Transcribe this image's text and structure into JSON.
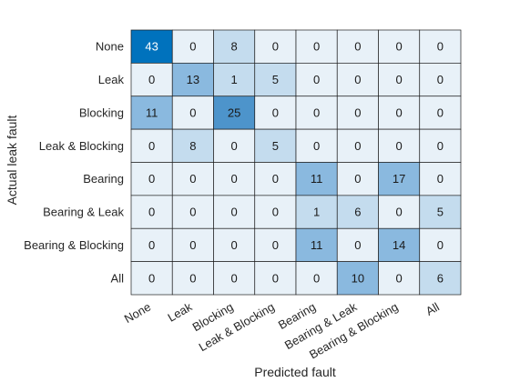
{
  "chart_data": {
    "type": "heatmap",
    "title": "",
    "xlabel": "Predicted fault",
    "ylabel": "Actual leak fault",
    "categories": [
      "None",
      "Leak",
      "Blocking",
      "Leak & Blocking",
      "Bearing",
      "Bearing & Leak",
      "Bearing & Blocking",
      "All"
    ],
    "x_categories": [
      "None",
      "Leak",
      "Blocking",
      "Leak & Blocking",
      "Bearing",
      "Bearing & Leak",
      "Bearing & Blocking",
      "All"
    ],
    "y_categories": [
      "None",
      "Leak",
      "Blocking",
      "Leak & Blocking",
      "Bearing",
      "Bearing & Leak",
      "Bearing & Blocking",
      "All"
    ],
    "matrix": [
      [
        43,
        0,
        8,
        0,
        0,
        0,
        0,
        0
      ],
      [
        0,
        13,
        1,
        5,
        0,
        0,
        0,
        0
      ],
      [
        11,
        0,
        25,
        0,
        0,
        0,
        0,
        0
      ],
      [
        0,
        8,
        0,
        5,
        0,
        0,
        0,
        0
      ],
      [
        0,
        0,
        0,
        0,
        11,
        0,
        17,
        0
      ],
      [
        0,
        0,
        0,
        0,
        1,
        6,
        0,
        5
      ],
      [
        0,
        0,
        0,
        0,
        11,
        0,
        14,
        0
      ],
      [
        0,
        0,
        0,
        0,
        0,
        10,
        0,
        6
      ]
    ],
    "grid": true,
    "colors": {
      "zero": "#e8f1f8",
      "low": "#c4dcee",
      "mid": "#8ab9df",
      "high": "#4d94cb",
      "max": "#0072bd",
      "text_dark": "#1a1a1a",
      "text_light": "#ffffff",
      "grid": "#1f1f1f",
      "axis_text": "#262626"
    }
  }
}
